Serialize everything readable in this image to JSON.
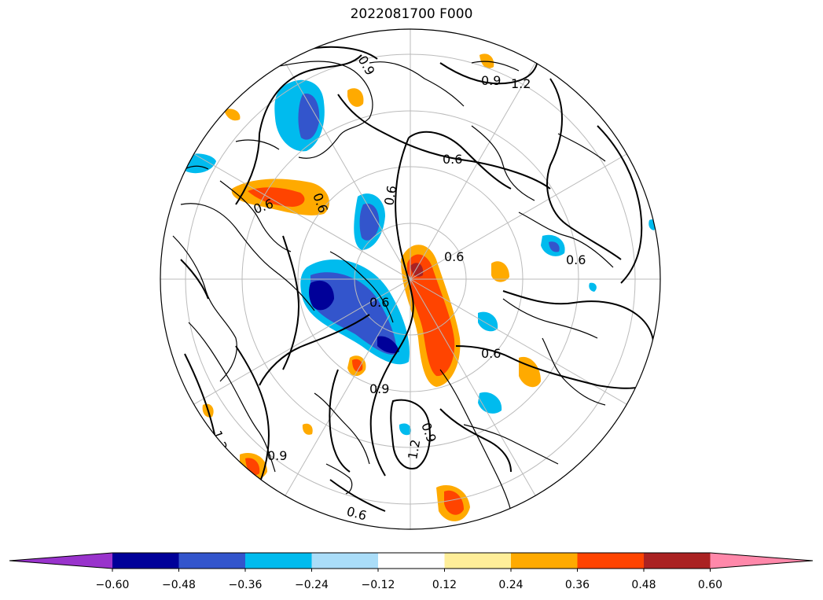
{
  "title": "2022081700 F000",
  "colorbar": {
    "colors": [
      "#9933cc",
      "#000099",
      "#3355cc",
      "#00bbee",
      "#aaddf8",
      "#ffffff",
      "#ffee99",
      "#ffaa00",
      "#ff4400",
      "#aa2222",
      "#ff88aa"
    ],
    "ticks": [
      "−0.60",
      "−0.48",
      "−0.36",
      "−0.24",
      "−0.12",
      "0.12",
      "0.24",
      "0.36",
      "0.48",
      "0.60"
    ]
  },
  "contour_labels": [
    "0.6",
    "0.6",
    "0.6",
    "0.6",
    "0.6",
    "0.6",
    "0.6",
    "0.6",
    "0.9",
    "0.9",
    "0.9",
    "0.9",
    "0.9",
    "1.2",
    "1.2",
    "1.2",
    "0.6"
  ],
  "map": {
    "projection": "north-polar-stereographic",
    "graticule": true,
    "coastlines": true
  }
}
